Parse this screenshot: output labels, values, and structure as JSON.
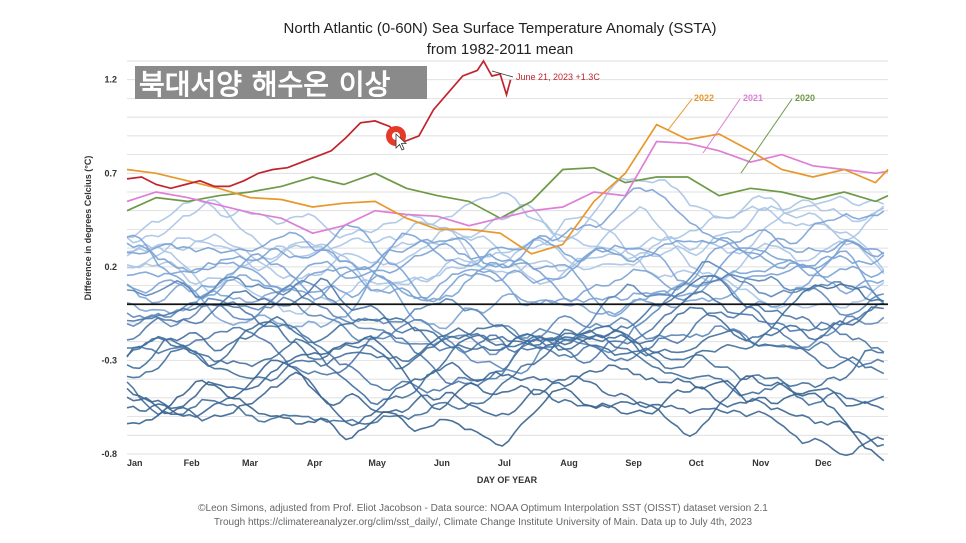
{
  "overlay": {
    "caption": "북대서양 해수온 이상",
    "caption_bg": "#8a8a8a"
  },
  "footer": {
    "line1": "©Leon Simons, adjusted from Prof. Eliot Jacobson - Data source: NOAA Optimum Interpolation SST (OISST) dataset version 2.1",
    "line2": "Trough https://climatereanalyzer.org/clim/sst_daily/, Climate Change Institute University of Main. Data up to July 4th, 2023"
  },
  "colors": {
    "y2023": "#c0242c",
    "y2022": "#e8972b",
    "y2021": "#dd7fd6",
    "y2020": "#6e9a47",
    "old": "#3f6e9c",
    "mid": "#7aa2d4",
    "recent": "#a8c4e6",
    "zero": "#111111"
  },
  "chart_data": {
    "type": "line",
    "title": "North Atlantic (0-60N) Sea Surface Temperature Anomaly (SSTA)",
    "subtitle": "from 1982-2011 mean",
    "xlabel": "DAY OF YEAR",
    "ylabel": "Difference in degrees Celcius (°C)",
    "ylim": [
      -0.8,
      1.3
    ],
    "xlim": [
      1,
      366
    ],
    "ytick_values": [
      1.2,
      0.7,
      0.2,
      -0.3,
      -0.8
    ],
    "ytick_labels": [
      "1.2",
      "0.7",
      "0.2",
      "-0.3",
      "-0.8"
    ],
    "xtick_days": [
      1,
      32,
      60,
      91,
      121,
      152,
      182,
      213,
      244,
      274,
      305,
      335
    ],
    "xtick_labels": [
      "Jan",
      "Feb",
      "Mar",
      "Apr",
      "May",
      "Jun",
      "Jul",
      "Aug",
      "Sep",
      "Oct",
      "Nov",
      "Dec"
    ],
    "grid": true,
    "zero_line": 0.0,
    "annotations": [
      {
        "text": "June 21, 2023 +1.3C",
        "x": 172,
        "y": 1.3,
        "series": "2023"
      }
    ],
    "highlighted_series": [
      {
        "name": "2023",
        "color": "#c0242c",
        "x": [
          1,
          8,
          15,
          22,
          29,
          36,
          43,
          50,
          57,
          64,
          71,
          78,
          85,
          92,
          99,
          106,
          113,
          120,
          127,
          134,
          141,
          148,
          155,
          162,
          169,
          172,
          176,
          180,
          183,
          185
        ],
        "y": [
          0.67,
          0.68,
          0.64,
          0.62,
          0.64,
          0.66,
          0.63,
          0.63,
          0.66,
          0.7,
          0.72,
          0.73,
          0.76,
          0.79,
          0.82,
          0.89,
          0.97,
          0.98,
          0.95,
          0.87,
          0.9,
          1.04,
          1.13,
          1.22,
          1.25,
          1.3,
          1.22,
          1.23,
          1.12,
          1.2
        ]
      },
      {
        "name": "2022",
        "color": "#e8972b",
        "x": [
          1,
          15,
          30,
          45,
          60,
          75,
          90,
          105,
          120,
          135,
          150,
          165,
          180,
          195,
          210,
          225,
          240,
          255,
          270,
          285,
          300,
          315,
          330,
          345,
          360,
          366
        ],
        "y": [
          0.72,
          0.7,
          0.66,
          0.62,
          0.57,
          0.56,
          0.52,
          0.54,
          0.55,
          0.46,
          0.4,
          0.4,
          0.38,
          0.27,
          0.32,
          0.55,
          0.7,
          0.96,
          0.88,
          0.91,
          0.82,
          0.72,
          0.68,
          0.72,
          0.65,
          0.72
        ]
      },
      {
        "name": "2021",
        "color": "#dd7fd6",
        "x": [
          1,
          15,
          30,
          45,
          60,
          75,
          90,
          105,
          120,
          135,
          150,
          165,
          180,
          195,
          210,
          225,
          240,
          255,
          270,
          285,
          300,
          315,
          330,
          345,
          360,
          366
        ],
        "y": [
          0.55,
          0.6,
          0.57,
          0.53,
          0.49,
          0.46,
          0.38,
          0.42,
          0.5,
          0.48,
          0.47,
          0.42,
          0.46,
          0.5,
          0.52,
          0.6,
          0.58,
          0.87,
          0.86,
          0.82,
          0.76,
          0.8,
          0.74,
          0.72,
          0.7,
          0.71
        ]
      },
      {
        "name": "2020",
        "color": "#6e9a47",
        "x": [
          1,
          15,
          30,
          45,
          60,
          75,
          90,
          105,
          120,
          135,
          150,
          165,
          180,
          195,
          210,
          225,
          240,
          255,
          270,
          285,
          300,
          315,
          330,
          345,
          360,
          366
        ],
        "y": [
          0.5,
          0.57,
          0.55,
          0.58,
          0.6,
          0.63,
          0.68,
          0.64,
          0.7,
          0.62,
          0.58,
          0.55,
          0.46,
          0.55,
          0.72,
          0.73,
          0.65,
          0.68,
          0.68,
          0.58,
          0.62,
          0.6,
          0.56,
          0.6,
          0.55,
          0.58
        ]
      }
    ],
    "series_legend_labels": [
      "2022",
      "2021",
      "2020"
    ],
    "background_years": [
      {
        "base": 0.35,
        "color": "#a8c4e6"
      },
      {
        "base": 0.28,
        "color": "#a8c4e6"
      },
      {
        "base": 0.42,
        "color": "#a8c4e6"
      },
      {
        "base": 0.22,
        "color": "#a8c4e6"
      },
      {
        "base": 0.3,
        "color": "#a8c4e6"
      },
      {
        "base": 0.18,
        "color": "#a8c4e6"
      },
      {
        "base": 0.38,
        "color": "#7aa2d4"
      },
      {
        "base": 0.15,
        "color": "#7aa2d4"
      },
      {
        "base": 0.25,
        "color": "#7aa2d4"
      },
      {
        "base": 0.1,
        "color": "#7aa2d4"
      },
      {
        "base": 0.32,
        "color": "#7aa2d4"
      },
      {
        "base": 0.05,
        "color": "#7aa2d4"
      },
      {
        "base": 0.2,
        "color": "#7aa2d4"
      },
      {
        "base": 0.0,
        "color": "#5b86b8"
      },
      {
        "base": -0.05,
        "color": "#5b86b8"
      },
      {
        "base": -0.1,
        "color": "#5b86b8"
      },
      {
        "base": -0.15,
        "color": "#4a76a8"
      },
      {
        "base": -0.18,
        "color": "#4a76a8"
      },
      {
        "base": -0.22,
        "color": "#4a76a8"
      },
      {
        "base": -0.26,
        "color": "#3f6e9c"
      },
      {
        "base": -0.3,
        "color": "#3f6e9c"
      },
      {
        "base": -0.33,
        "color": "#3f6e9c"
      },
      {
        "base": -0.36,
        "color": "#3f6e9c"
      },
      {
        "base": -0.4,
        "color": "#3f6e9c"
      },
      {
        "base": -0.45,
        "color": "#3a6592"
      },
      {
        "base": -0.5,
        "color": "#3a6592"
      },
      {
        "base": -0.55,
        "color": "#3a6592"
      },
      {
        "base": -0.6,
        "color": "#35608c"
      }
    ]
  }
}
